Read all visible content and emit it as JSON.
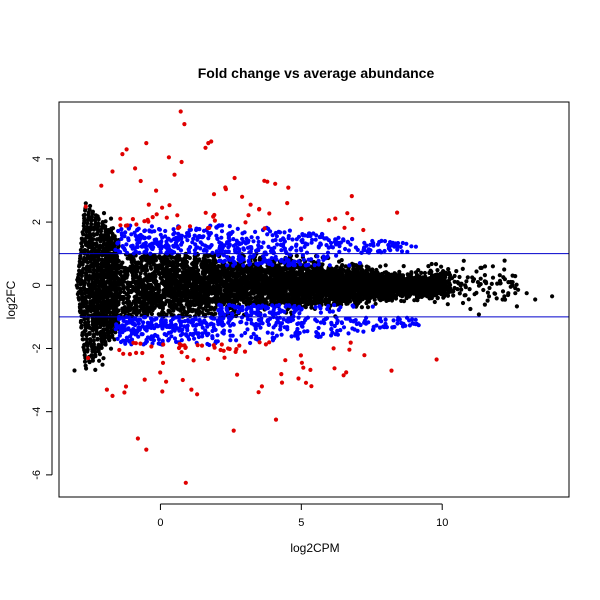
{
  "chart_data": {
    "type": "scatter",
    "title": "Fold change vs average abundance",
    "xlabel": "log2CPM",
    "ylabel": "log2FC",
    "xlim": [
      -3.6,
      14.5
    ],
    "ylim": [
      -6.7,
      5.8
    ],
    "x_ticks": [
      0,
      5,
      10
    ],
    "y_ticks": [
      -6,
      -4,
      -2,
      0,
      2,
      4
    ],
    "threshold_lines": [
      1,
      -1
    ],
    "grid": false,
    "legend": "none",
    "colors": {
      "not_significant": "#000000",
      "significant_small": "#0000ff",
      "significant_large": "#e00000",
      "threshold_line": "#0000cc"
    },
    "notable_points": [
      {
        "x": 0.72,
        "y": 5.5,
        "group": "red"
      },
      {
        "x": 0.85,
        "y": 5.1,
        "group": "red"
      },
      {
        "x": 1.8,
        "y": 4.55,
        "group": "red"
      },
      {
        "x": 1.7,
        "y": 4.5,
        "group": "red"
      },
      {
        "x": -0.5,
        "y": 4.5,
        "group": "red"
      },
      {
        "x": 1.6,
        "y": 4.35,
        "group": "red"
      },
      {
        "x": -1.2,
        "y": 4.3,
        "group": "red"
      },
      {
        "x": -1.35,
        "y": 4.15,
        "group": "red"
      },
      {
        "x": 0.3,
        "y": 4.05,
        "group": "red"
      },
      {
        "x": 0.75,
        "y": 3.9,
        "group": "red"
      },
      {
        "x": -0.9,
        "y": 3.7,
        "group": "red"
      },
      {
        "x": -1.7,
        "y": 3.6,
        "group": "red"
      },
      {
        "x": -0.7,
        "y": 3.3,
        "group": "red"
      },
      {
        "x": -2.1,
        "y": 3.15,
        "group": "red"
      },
      {
        "x": 0.5,
        "y": 3.5,
        "group": "red"
      },
      {
        "x": 2.9,
        "y": 2.8,
        "group": "red"
      },
      {
        "x": 3.2,
        "y": 2.55,
        "group": "red"
      },
      {
        "x": 3.5,
        "y": 2.4,
        "group": "red"
      },
      {
        "x": 4.5,
        "y": 2.6,
        "group": "red"
      },
      {
        "x": 8.4,
        "y": 2.3,
        "group": "red"
      },
      {
        "x": 7.2,
        "y": 1.75,
        "group": "red"
      },
      {
        "x": 5.0,
        "y": 2.1,
        "group": "red"
      },
      {
        "x": 0.9,
        "y": -6.25,
        "group": "red"
      },
      {
        "x": -0.8,
        "y": -4.85,
        "group": "red"
      },
      {
        "x": -0.5,
        "y": -5.2,
        "group": "red"
      },
      {
        "x": 4.1,
        "y": -4.25,
        "group": "red"
      },
      {
        "x": 2.6,
        "y": -4.6,
        "group": "red"
      },
      {
        "x": 0.2,
        "y": -3.05,
        "group": "red"
      },
      {
        "x": 1.1,
        "y": -3.3,
        "group": "red"
      },
      {
        "x": 1.3,
        "y": -3.45,
        "group": "red"
      },
      {
        "x": -1.7,
        "y": -3.5,
        "group": "red"
      },
      {
        "x": -1.9,
        "y": -3.3,
        "group": "red"
      },
      {
        "x": 3.6,
        "y": -3.2,
        "group": "red"
      },
      {
        "x": 4.9,
        "y": -2.95,
        "group": "red"
      },
      {
        "x": 6.5,
        "y": -2.85,
        "group": "red"
      },
      {
        "x": 8.2,
        "y": -2.7,
        "group": "red"
      },
      {
        "x": 9.8,
        "y": -2.35,
        "group": "red"
      },
      {
        "x": 3.0,
        "y": -2.1,
        "group": "red"
      },
      {
        "x": 2.4,
        "y": -2.0,
        "group": "red"
      },
      {
        "x": 13.9,
        "y": -0.35,
        "group": "black"
      },
      {
        "x": 13.3,
        "y": -0.45,
        "group": "black"
      },
      {
        "x": 13.0,
        "y": -0.25,
        "group": "black"
      },
      {
        "x": 12.5,
        "y": 0.1,
        "group": "black"
      },
      {
        "x": 12.2,
        "y": 0.5,
        "group": "black"
      },
      {
        "x": 11.8,
        "y": 0.6,
        "group": "black"
      },
      {
        "x": 11.4,
        "y": 0.55,
        "group": "black"
      },
      {
        "x": 11.0,
        "y": -0.75,
        "group": "black"
      },
      {
        "x": 10.2,
        "y": -0.6,
        "group": "black"
      },
      {
        "x": 10.5,
        "y": 0.45,
        "group": "black"
      }
    ]
  }
}
